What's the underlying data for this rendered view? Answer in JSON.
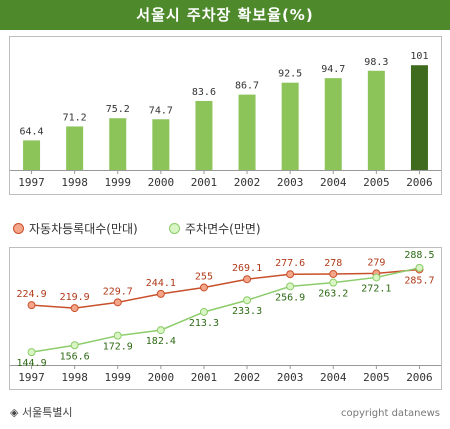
{
  "header": {
    "title": "서울시 주차장 확보율(%)"
  },
  "chart_data": [
    {
      "type": "bar",
      "title": "서울시 주차장 확보율(%)",
      "categories": [
        "1997",
        "1998",
        "1999",
        "2000",
        "2001",
        "2002",
        "2003",
        "2004",
        "2005",
        "2006"
      ],
      "values": [
        64.4,
        71.2,
        75.2,
        74.7,
        83.6,
        86.7,
        92.5,
        94.7,
        98.3,
        101
      ],
      "value_labels": [
        "64.4",
        "71.2",
        "75.2",
        "74.7",
        "83.6",
        "86.7",
        "92.5",
        "94.7",
        "98.3",
        "101"
      ],
      "ylim": [
        50,
        105
      ],
      "colors": {
        "bar": "#8cc45a",
        "highlight": "#3f6b1f"
      },
      "highlight_index": 9,
      "grid": false
    },
    {
      "type": "line",
      "categories": [
        "1997",
        "1998",
        "1999",
        "2000",
        "2001",
        "2002",
        "2003",
        "2004",
        "2005",
        "2006"
      ],
      "ylim": [
        140,
        295
      ],
      "legend": "top-left",
      "grid": false,
      "series": [
        {
          "name": "자동차등록대수(만대)",
          "values": [
            224.9,
            219.9,
            229.7,
            244.1,
            255,
            269.1,
            277.6,
            278,
            279,
            285.7
          ],
          "labels": [
            "224.9",
            "219.9",
            "229.7",
            "244.1",
            "255",
            "269.1",
            "277.6",
            "278",
            "279",
            "285.7"
          ],
          "color": "#c8502a",
          "marker_fill": "#f4a58a"
        },
        {
          "name": "주차면수(만면)",
          "values": [
            144.9,
            156.6,
            172.9,
            182.4,
            213.3,
            233.3,
            256.9,
            263.2,
            272.1,
            288.5
          ],
          "labels": [
            "144.9",
            "156.6",
            "172.9",
            "182.4",
            "213.3",
            "233.3",
            "256.9",
            "263.2",
            "272.1",
            "288.5"
          ],
          "color": "#8ccc6a",
          "marker_fill": "#d9f5c3"
        }
      ]
    }
  ],
  "footer": {
    "source": "◈ 서울특별시",
    "copyright": "copyright datanews"
  }
}
